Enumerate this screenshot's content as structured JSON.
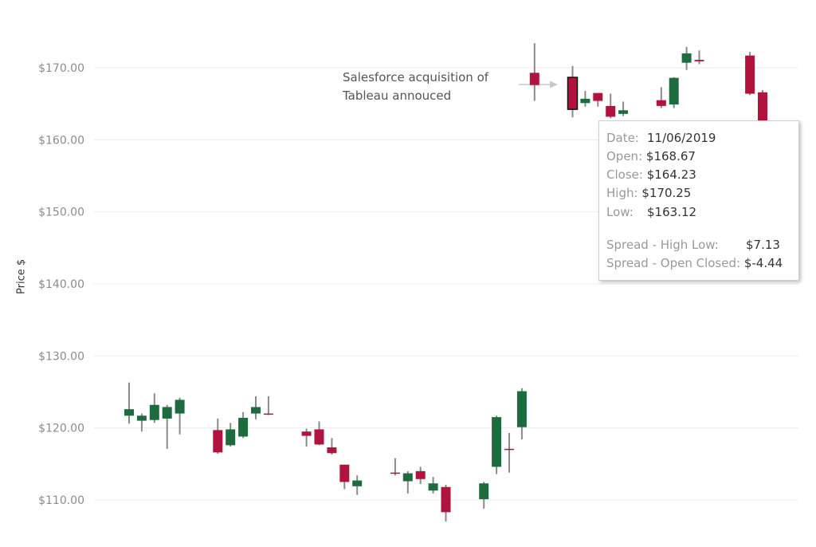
{
  "chart_data": {
    "type": "candlestick",
    "ylabel": "Price $",
    "ylim": [
      104.5,
      178.5
    ],
    "y_ticks": [
      "$110.00",
      "$120.00",
      "$130.00",
      "$140.00",
      "$150.00",
      "$160.00",
      "$170.00"
    ],
    "y_tick_values": [
      110,
      120,
      130,
      140,
      150,
      160,
      170
    ],
    "grid": true,
    "colors": {
      "up": "#1e6b3e",
      "down": "#b2123e",
      "wick": "#8a8a8a"
    },
    "candles": [
      {
        "open": 121.7,
        "close": 122.6,
        "high": 126.3,
        "low": 120.6
      },
      {
        "open": 121.0,
        "close": 121.7,
        "high": 122.0,
        "low": 119.5
      },
      {
        "open": 121.1,
        "close": 123.2,
        "high": 124.8,
        "low": 120.7
      },
      {
        "open": 121.3,
        "close": 122.9,
        "high": 123.2,
        "low": 117.1
      },
      {
        "open": 122.0,
        "close": 123.9,
        "high": 124.2,
        "low": 119.1
      },
      {
        "open": 119.7,
        "close": 116.6,
        "high": 121.3,
        "low": 116.4
      },
      {
        "open": 117.6,
        "close": 119.8,
        "high": 120.7,
        "low": 117.4
      },
      {
        "open": 118.8,
        "close": 121.4,
        "high": 122.2,
        "low": 118.6
      },
      {
        "open": 122.0,
        "close": 122.9,
        "high": 124.4,
        "low": 121.2
      },
      {
        "open": 122.0,
        "close": 121.9,
        "high": 124.4,
        "low": 121.8
      },
      {
        "open": 119.5,
        "close": 118.9,
        "high": 119.9,
        "low": 117.4
      },
      {
        "open": 119.8,
        "close": 117.7,
        "high": 120.9,
        "low": 117.6
      },
      {
        "open": 117.3,
        "close": 116.5,
        "high": 118.6,
        "low": 116.3
      },
      {
        "open": 114.9,
        "close": 112.5,
        "high": 114.9,
        "low": 111.5
      },
      {
        "open": 111.9,
        "close": 112.7,
        "high": 113.4,
        "low": 110.7
      },
      {
        "open": 113.8,
        "close": 113.7,
        "high": 115.8,
        "low": 113.4
      },
      {
        "open": 112.6,
        "close": 113.7,
        "high": 114.0,
        "low": 110.9
      },
      {
        "open": 114.0,
        "close": 112.9,
        "high": 114.6,
        "low": 112.2
      },
      {
        "open": 111.3,
        "close": 112.3,
        "high": 113.2,
        "low": 110.9
      },
      {
        "open": 111.8,
        "close": 108.3,
        "high": 112.1,
        "low": 107.0
      },
      {
        "open": 110.1,
        "close": 112.3,
        "high": 112.5,
        "low": 108.8
      },
      {
        "open": 114.6,
        "close": 121.5,
        "high": 121.7,
        "low": 113.6
      },
      {
        "open": 117.1,
        "close": 117.0,
        "high": 119.3,
        "low": 113.8
      },
      {
        "open": 120.1,
        "close": 125.1,
        "high": 125.5,
        "low": 118.4
      },
      {
        "open": 169.3,
        "close": 167.6,
        "high": 173.4,
        "low": 165.4
      },
      {
        "open": 168.67,
        "close": 164.23,
        "high": 170.25,
        "low": 163.12
      },
      {
        "open": 165.1,
        "close": 165.7,
        "high": 166.8,
        "low": 164.6
      },
      {
        "open": 166.5,
        "close": 165.4,
        "high": 166.5,
        "low": 164.6
      },
      {
        "open": 164.7,
        "close": 163.2,
        "high": 166.4,
        "low": 163.0
      },
      {
        "open": 163.6,
        "close": 164.1,
        "high": 165.3,
        "low": 163.3
      },
      {
        "open": 165.5,
        "close": 164.7,
        "high": 167.3,
        "low": 164.4
      },
      {
        "open": 164.9,
        "close": 168.6,
        "high": 168.7,
        "low": 164.4
      },
      {
        "open": 170.7,
        "close": 172.0,
        "high": 172.9,
        "low": 169.7
      },
      {
        "open": 171.1,
        "close": 170.9,
        "high": 172.4,
        "low": 170.5
      },
      {
        "open": 171.7,
        "close": 166.4,
        "high": 172.2,
        "low": 166.2
      },
      {
        "open": 166.6,
        "close": 162.0,
        "high": 166.9,
        "low": 161.8
      }
    ],
    "candle_slots": [
      0,
      1,
      2,
      3,
      4,
      7,
      8,
      9,
      10,
      11,
      14,
      15,
      16,
      17,
      18,
      21,
      22,
      23,
      24,
      25,
      28,
      29,
      30,
      31,
      32,
      35,
      36,
      37,
      38,
      39,
      42,
      43,
      44,
      45,
      49,
      50
    ],
    "highlighted_index": 25,
    "annotation": [
      "Salesforce acquisition of",
      "Tableau annouced"
    ]
  },
  "tooltip": {
    "date_label": "Date:",
    "date_value": "11/06/2019",
    "open_label": "Open:",
    "open_value": "$168.67",
    "close_label": "Close:",
    "close_value": "$164.23",
    "high_label": "High:",
    "high_value": "$170.25",
    "low_label": "Low:",
    "low_value": "$163.12",
    "spread_hl_label": "Spread - High Low:",
    "spread_hl_value": "$7.13",
    "spread_oc_label": "Spread - Open Closed:",
    "spread_oc_value": "$-4.44"
  }
}
